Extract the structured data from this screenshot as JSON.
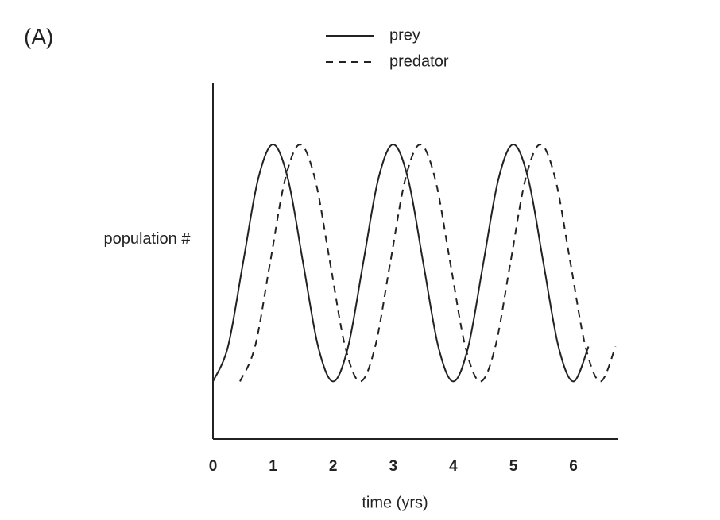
{
  "chart_data": {
    "type": "line",
    "title": "(A)",
    "xlabel": "time (yrs)",
    "ylabel": "population #",
    "xlim": [
      0,
      6.75
    ],
    "xticks": [
      0,
      1,
      2,
      3,
      4,
      5,
      6
    ],
    "ylim": [
      0,
      100
    ],
    "series": [
      {
        "name": "prey",
        "color": "#222222",
        "dash": "solid",
        "x": [
          0,
          0.25,
          0.5,
          0.75,
          1,
          1.25,
          1.5,
          1.75,
          2,
          2.25,
          2.5,
          2.75,
          3,
          3.25,
          3.5,
          3.75,
          4,
          4.25,
          4.5,
          4.75,
          5,
          5.25,
          5.5,
          5.75,
          6,
          6.25
        ],
        "values": [
          16.2,
          26.0,
          49.5,
          73.0,
          82.8,
          73.0,
          49.5,
          26.0,
          16.2,
          26.0,
          49.5,
          73.0,
          82.8,
          73.0,
          49.5,
          26.0,
          16.2,
          26.0,
          49.5,
          73.0,
          82.8,
          73.0,
          49.5,
          26.0,
          16.2,
          26.0
        ]
      },
      {
        "name": "predator",
        "color": "#222222",
        "dash": "dashed",
        "x": [
          0.45,
          0.7,
          0.95,
          1.2,
          1.45,
          1.7,
          1.95,
          2.2,
          2.45,
          2.7,
          2.95,
          3.2,
          3.45,
          3.7,
          3.95,
          4.2,
          4.45,
          4.7,
          4.95,
          5.2,
          5.45,
          5.7,
          5.95,
          6.2,
          6.45,
          6.7
        ],
        "values": [
          16.2,
          26.0,
          49.5,
          73.0,
          82.8,
          73.0,
          49.5,
          26.0,
          16.2,
          26.0,
          49.5,
          73.0,
          82.8,
          73.0,
          49.5,
          26.0,
          16.2,
          26.0,
          49.5,
          73.0,
          82.8,
          73.0,
          49.5,
          26.0,
          16.2,
          26.0
        ]
      }
    ]
  }
}
